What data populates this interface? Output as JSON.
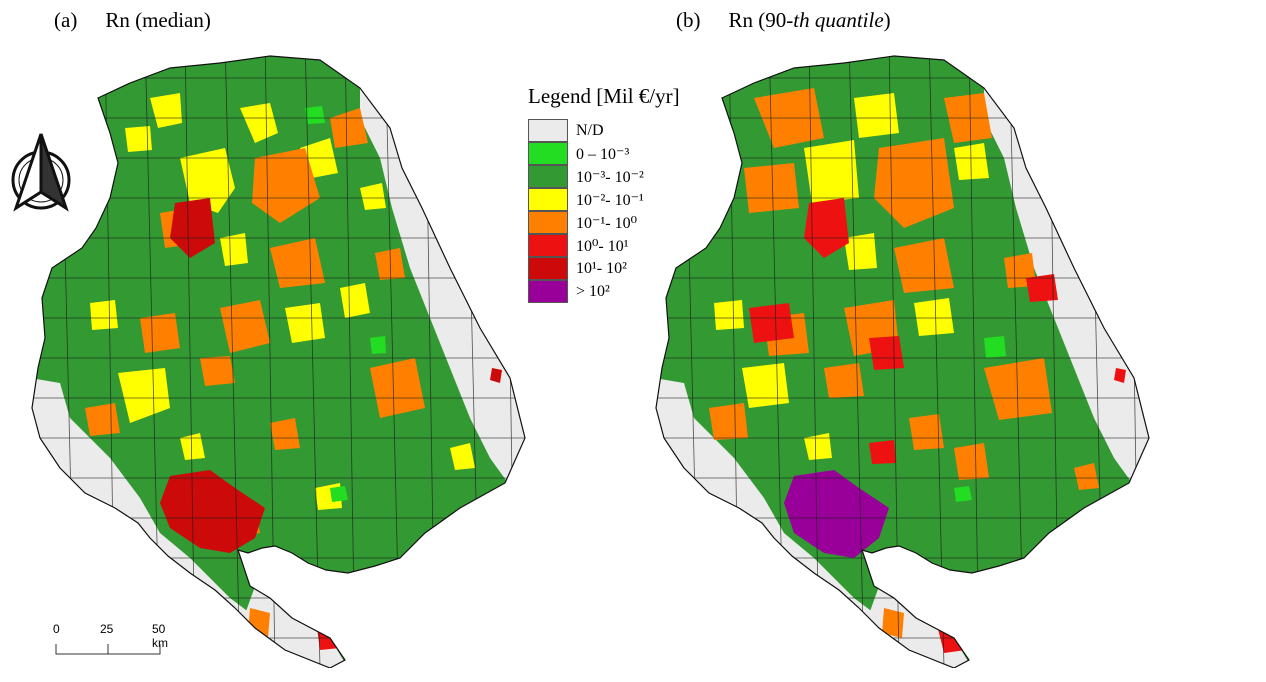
{
  "panels": [
    {
      "tag": "(a)",
      "title": "Rn (median)"
    },
    {
      "tag": "(b)",
      "title_prefix": "Rn (90-",
      "title_italic": "th quantile",
      "title_suffix": ")"
    }
  ],
  "legend": {
    "title": "Legend [Mil €/yr]",
    "items": [
      {
        "label": "N/D",
        "color": "#ebebeb"
      },
      {
        "label": "0 – 10⁻³",
        "color": "#22dd22"
      },
      {
        "label": "10⁻³- 10⁻²",
        "color": "#339933"
      },
      {
        "label": "10⁻²- 10⁻¹",
        "color": "#ffff00"
      },
      {
        "label": "10⁻¹- 10⁰",
        "color": "#ff8000"
      },
      {
        "label": "10⁰- 10¹",
        "color": "#ee1111"
      },
      {
        "label": "10¹- 10²",
        "color": "#cc0a0a"
      },
      {
        "label": "> 10²",
        "color": "#990099"
      }
    ]
  },
  "scale_bar": {
    "labels": [
      "0",
      "25",
      "50 km"
    ]
  },
  "north_arrow": {
    "icon": "north-arrow-icon"
  }
}
